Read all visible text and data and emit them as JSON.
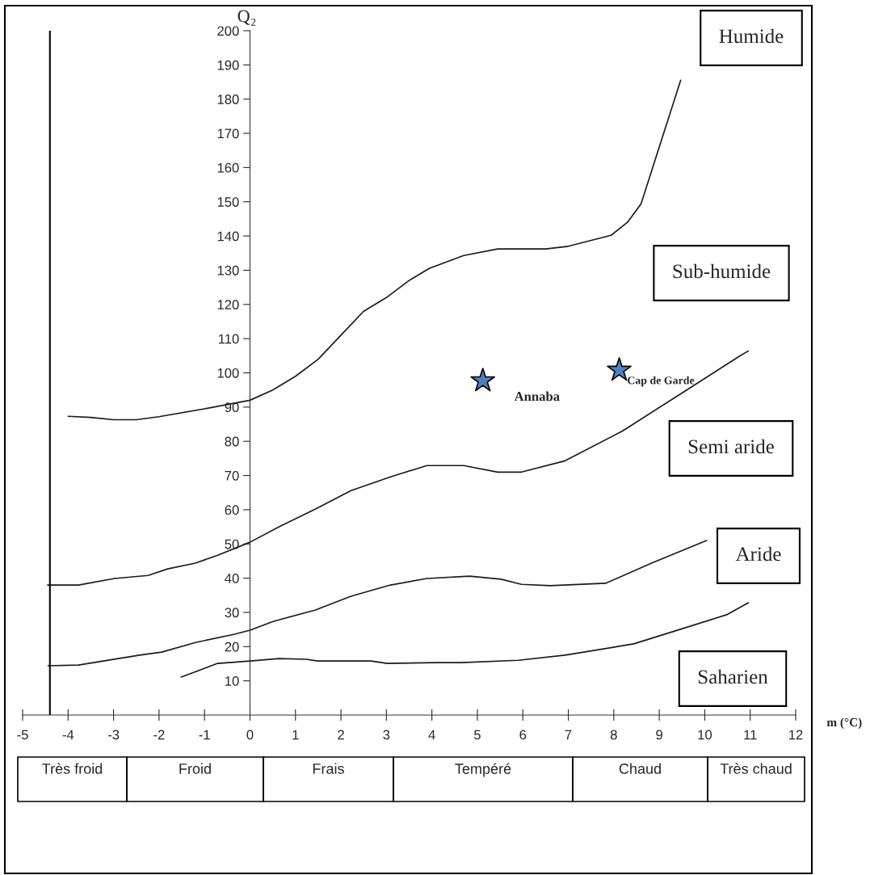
{
  "chart_data": {
    "type": "line",
    "xlabel": "m (°C)",
    "ylabel": "Q₂",
    "xlim": [
      -5,
      12
    ],
    "ylim": [
      0,
      200
    ],
    "xticks": [
      -5,
      -4,
      -3,
      -2,
      -1,
      0,
      1,
      2,
      3,
      4,
      5,
      6,
      7,
      8,
      9,
      10,
      11,
      12
    ],
    "yticks": [
      10,
      20,
      30,
      40,
      50,
      60,
      70,
      80,
      90,
      100,
      110,
      120,
      130,
      140,
      150,
      160,
      170,
      180,
      190,
      200
    ],
    "grid": false,
    "series": [
      {
        "color": "#1a1a1a",
        "x": [
          -4.0,
          -3.5,
          -3.0,
          -2.5,
          -2.0,
          -1.0,
          0.0,
          0.5,
          1.0,
          1.5,
          2.0,
          2.5,
          3.0,
          3.5,
          3.94,
          4.7,
          5.45,
          6.5,
          7.0,
          7.94,
          8.3,
          8.6,
          9.0,
          9.47
        ],
        "values": [
          87.3,
          87,
          86.3,
          86.3,
          87.2,
          89.5,
          92,
          95,
          99,
          104,
          111,
          118,
          122,
          127,
          130.5,
          134.3,
          136.2,
          136.2,
          137,
          140.2,
          144,
          149.4,
          166,
          185.5
        ]
      },
      {
        "color": "#1a1a1a",
        "x": [
          -4.45,
          -3.77,
          -2.98,
          -2.24,
          -1.81,
          -1.2,
          -0.71,
          0.0,
          0.64,
          1.44,
          2.22,
          3.09,
          3.89,
          4.7,
          5.45,
          5.97,
          6.93,
          8.19,
          9.45,
          10.78,
          10.96
        ],
        "values": [
          38,
          38,
          39.9,
          40.8,
          42.7,
          44.4,
          46.7,
          50.5,
          55,
          60.2,
          65.6,
          69.6,
          72.9,
          72.9,
          71,
          71,
          74.3,
          83,
          93.7,
          105,
          106.4
        ]
      },
      {
        "color": "#1a1a1a",
        "x": [
          -4.44,
          -3.77,
          -2.43,
          -1.94,
          -1.2,
          -0.34,
          0.0,
          0.52,
          1.44,
          2.22,
          3.09,
          3.89,
          4.83,
          5.52,
          5.97,
          6.6,
          7.82,
          8.83,
          10.04
        ],
        "values": [
          14.4,
          14.6,
          17.5,
          18.4,
          21.2,
          23.6,
          24.8,
          27.4,
          30.7,
          34.7,
          38,
          39.9,
          40.6,
          39.7,
          38.2,
          37.8,
          38.5,
          44.4,
          51
        ]
      },
      {
        "color": "#1a1a1a",
        "x": [
          -1.51,
          -0.71,
          0.0,
          0.64,
          1.24,
          1.49,
          2.66,
          3.02,
          4.12,
          4.64,
          5.9,
          6.93,
          8.44,
          9.45,
          10.48,
          10.96
        ],
        "values": [
          11.1,
          15.1,
          15.8,
          16.5,
          16.3,
          15.8,
          15.8,
          15.1,
          15.3,
          15.3,
          16,
          17.5,
          20.8,
          25,
          29.3,
          32.8
        ]
      },
      {
        "type": "scatter",
        "name": "Annaba",
        "marker": "star",
        "color": "#4f81bd",
        "x": [
          5.12
        ],
        "values": [
          97.7
        ]
      },
      {
        "type": "scatter",
        "name": "Cap de Garde",
        "marker": "star",
        "color": "#4f81bd",
        "x": [
          8.12
        ],
        "values": [
          100.8
        ]
      }
    ],
    "ref_lines": [
      {
        "axis": "x",
        "value": -4.4,
        "color": "#000000"
      }
    ],
    "annotations": [
      "Humide",
      "Sub-humide",
      "Semi aride",
      "Aride",
      "Saharien",
      "Très froid",
      "Froid",
      "Frais",
      "Tempéré",
      "Chaud",
      "Très chaud"
    ]
  }
}
